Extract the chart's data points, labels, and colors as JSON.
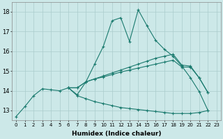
{
  "xlabel": "Humidex (Indice chaleur)",
  "ylabel": "",
  "bg_color": "#cce8e8",
  "grid_color": "#aacccc",
  "line_color": "#1a7a6e",
  "xlim": [
    -0.5,
    23.5
  ],
  "ylim": [
    12.5,
    18.5
  ],
  "yticks": [
    13,
    14,
    15,
    16,
    17,
    18
  ],
  "xticks": [
    0,
    1,
    2,
    3,
    4,
    5,
    6,
    7,
    8,
    9,
    10,
    11,
    12,
    13,
    14,
    15,
    16,
    17,
    18,
    19,
    20,
    21,
    22,
    23
  ],
  "xtick_labels": [
    "0",
    "1",
    "2",
    "3",
    "4",
    "5",
    "6",
    "7",
    "8",
    "9",
    "10",
    "11",
    "12",
    "13",
    "14",
    "15",
    "16",
    "17",
    "18",
    "19",
    "20",
    "21",
    "22",
    "23"
  ],
  "lines": [
    {
      "x": [
        0,
        1,
        2,
        3,
        4,
        5,
        6,
        7,
        8,
        9,
        10,
        11,
        12,
        13,
        14,
        15,
        16,
        17,
        18,
        19,
        20,
        21,
        22
      ],
      "y": [
        12.7,
        13.2,
        13.75,
        14.1,
        14.05,
        14.0,
        14.15,
        13.8,
        14.45,
        15.35,
        16.25,
        17.55,
        17.7,
        16.5,
        18.1,
        17.3,
        16.55,
        16.1,
        15.75,
        15.25,
        14.65,
        13.95,
        13.0
      ]
    },
    {
      "x": [
        6,
        7,
        8,
        9,
        10,
        11,
        12,
        13,
        14,
        15,
        16,
        17,
        18,
        19,
        20,
        21,
        22
      ],
      "y": [
        14.15,
        14.15,
        14.45,
        14.6,
        14.75,
        14.9,
        15.05,
        15.2,
        15.35,
        15.5,
        15.65,
        15.75,
        15.85,
        15.3,
        15.25,
        14.65,
        13.9
      ]
    },
    {
      "x": [
        6,
        7,
        8,
        9,
        10,
        11,
        12,
        13,
        14,
        15,
        16,
        17,
        18,
        19,
        20,
        21,
        22
      ],
      "y": [
        14.15,
        14.15,
        14.45,
        14.6,
        14.7,
        14.82,
        14.95,
        15.05,
        15.15,
        15.25,
        15.35,
        15.45,
        15.55,
        15.2,
        15.2,
        14.65,
        13.9
      ]
    },
    {
      "x": [
        6,
        7,
        8,
        9,
        10,
        11,
        12,
        13,
        14,
        15,
        16,
        17,
        18,
        19,
        20,
        21,
        22
      ],
      "y": [
        14.15,
        13.75,
        13.6,
        13.45,
        13.35,
        13.25,
        13.15,
        13.1,
        13.05,
        13.0,
        12.95,
        12.9,
        12.85,
        12.85,
        12.85,
        12.9,
        13.0
      ]
    }
  ]
}
